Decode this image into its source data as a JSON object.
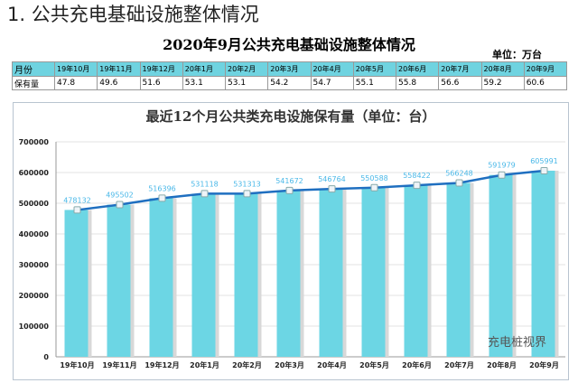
{
  "heading": "1. 公共充电基础设施整体情况",
  "subtitle": "2020年9月公共充电基础设施整体情况",
  "unit": "单位：万台",
  "table": {
    "header_label": "月份",
    "row_label": "保有量",
    "months": [
      "19年10月",
      "19年11月",
      "19年12月",
      "20年1月",
      "20年2月",
      "20年3月",
      "20年4月",
      "20年5月",
      "20年6月",
      "20年7月",
      "20年8月",
      "20年9月"
    ],
    "values": [
      "47.8",
      "49.6",
      "51.6",
      "53.1",
      "53.1",
      "54.2",
      "54.7",
      "55.1",
      "55.8",
      "56.6",
      "59.2",
      "60.6"
    ]
  },
  "watermark": "充电桩视界",
  "chart_data": {
    "type": "bar",
    "title": "最近12个月公共类充电设施保有量（单位：台）",
    "categories": [
      "19年10月",
      "19年11月",
      "19年12月",
      "20年1月",
      "20年2月",
      "20年3月",
      "20年4月",
      "20年5月",
      "20年6月",
      "20年7月",
      "20年8月",
      "20年9月"
    ],
    "values": [
      478132,
      495502,
      516396,
      531118,
      531313,
      541672,
      546764,
      550588,
      558422,
      566248,
      591979,
      605991
    ],
    "line_overlay": true,
    "ylim": [
      0,
      700000
    ],
    "yticks": [
      "0",
      "100000",
      "200000",
      "300000",
      "400000",
      "500000",
      "600000",
      "700000"
    ],
    "grid": true,
    "colors": {
      "bar": "#6cd6e4",
      "line": "#1f6fc0",
      "label": "#4ab8e8"
    }
  }
}
